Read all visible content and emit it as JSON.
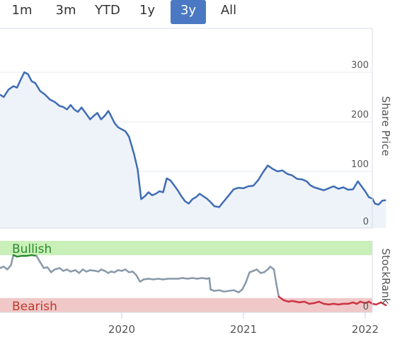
{
  "range_selector": {
    "buttons": [
      "1m",
      "3m",
      "YTD",
      "1y",
      "3y",
      "All"
    ],
    "selected": "3y",
    "active_color": "#4a78c2"
  },
  "chart_data": [
    {
      "type": "area",
      "name": "share-price",
      "ylabel": "Share Price",
      "y_ticks": [
        0,
        100,
        200,
        300
      ],
      "ylim": [
        0,
        400
      ],
      "x_ticks": [
        "2020",
        "2021",
        "2022"
      ],
      "line_color": "#3e6db5",
      "fill_color": "#eef2f9",
      "series": [
        {
          "values": [
            [
              2019.0,
              255
            ],
            [
              2019.03,
              250
            ],
            [
              2019.07,
              265
            ],
            [
              2019.11,
              272
            ],
            [
              2019.14,
              269
            ],
            [
              2019.17,
              285
            ],
            [
              2019.2,
              300
            ],
            [
              2019.23,
              296
            ],
            [
              2019.26,
              282
            ],
            [
              2019.29,
              278
            ],
            [
              2019.33,
              262
            ],
            [
              2019.37,
              255
            ],
            [
              2019.41,
              245
            ],
            [
              2019.45,
              240
            ],
            [
              2019.49,
              232
            ],
            [
              2019.52,
              230
            ],
            [
              2019.55,
              225
            ],
            [
              2019.58,
              234
            ],
            [
              2019.61,
              225
            ],
            [
              2019.64,
              220
            ],
            [
              2019.67,
              229
            ],
            [
              2019.7,
              219
            ],
            [
              2019.74,
              205
            ],
            [
              2019.77,
              212
            ],
            [
              2019.8,
              218
            ],
            [
              2019.83,
              205
            ],
            [
              2019.86,
              212
            ],
            [
              2019.89,
              222
            ],
            [
              2019.91,
              213
            ],
            [
              2019.94,
              198
            ],
            [
              2019.97,
              189
            ],
            [
              2020.0,
              185
            ],
            [
              2020.03,
              181
            ],
            [
              2020.06,
              170
            ],
            [
              2020.1,
              136
            ],
            [
              2020.13,
              105
            ],
            [
              2020.16,
              44
            ],
            [
              2020.19,
              50
            ],
            [
              2020.22,
              58
            ],
            [
              2020.25,
              52
            ],
            [
              2020.28,
              55
            ],
            [
              2020.31,
              60
            ],
            [
              2020.34,
              58
            ],
            [
              2020.37,
              86
            ],
            [
              2020.4,
              82
            ],
            [
              2020.43,
              72
            ],
            [
              2020.46,
              62
            ],
            [
              2020.49,
              50
            ],
            [
              2020.52,
              40
            ],
            [
              2020.55,
              35
            ],
            [
              2020.58,
              44
            ],
            [
              2020.61,
              48
            ],
            [
              2020.64,
              55
            ],
            [
              2020.67,
              50
            ],
            [
              2020.7,
              45
            ],
            [
              2020.73,
              38
            ],
            [
              2020.76,
              30
            ],
            [
              2020.8,
              28
            ],
            [
              2020.84,
              40
            ],
            [
              2020.88,
              52
            ],
            [
              2020.92,
              64
            ],
            [
              2020.96,
              67
            ],
            [
              2021.0,
              66
            ],
            [
              2021.04,
              70
            ],
            [
              2021.08,
              71
            ],
            [
              2021.12,
              82
            ],
            [
              2021.16,
              98
            ],
            [
              2021.2,
              112
            ],
            [
              2021.24,
              105
            ],
            [
              2021.28,
              100
            ],
            [
              2021.32,
              102
            ],
            [
              2021.36,
              95
            ],
            [
              2021.4,
              92
            ],
            [
              2021.44,
              85
            ],
            [
              2021.48,
              84
            ],
            [
              2021.52,
              80
            ],
            [
              2021.55,
              72
            ],
            [
              2021.58,
              68
            ],
            [
              2021.62,
              65
            ],
            [
              2021.66,
              62
            ],
            [
              2021.7,
              66
            ],
            [
              2021.74,
              70
            ],
            [
              2021.78,
              65
            ],
            [
              2021.82,
              68
            ],
            [
              2021.86,
              63
            ],
            [
              2021.9,
              64
            ],
            [
              2021.94,
              80
            ],
            [
              2021.97,
              70
            ],
            [
              2022.0,
              60
            ],
            [
              2022.03,
              48
            ],
            [
              2022.06,
              45
            ],
            [
              2022.08,
              35
            ],
            [
              2022.11,
              33
            ],
            [
              2022.14,
              41
            ],
            [
              2022.17,
              42
            ]
          ]
        }
      ]
    },
    {
      "type": "line",
      "name": "stockrank",
      "ylabel": "StockRank",
      "y_ticks": [
        0
      ],
      "ylim": [
        0,
        100
      ],
      "bands": [
        {
          "label": "Bullish",
          "from": 80,
          "to": 100,
          "color": "#c9f0b8",
          "text_color": "#2b8a2f"
        },
        {
          "label": "Bearish",
          "from": 0,
          "to": 20,
          "color": "#f0c8c8",
          "text_color": "#c0392b"
        }
      ],
      "neutral_color": "#8899aa",
      "bullish_line_color": "#2b8a2f",
      "bearish_line_color": "#cc3344",
      "series": [
        {
          "values": [
            [
              2019.0,
              62
            ],
            [
              2019.03,
              64
            ],
            [
              2019.06,
              60
            ],
            [
              2019.09,
              66
            ],
            [
              2019.11,
              80
            ],
            [
              2019.14,
              78
            ],
            [
              2019.18,
              79
            ],
            [
              2019.22,
              79
            ],
            [
              2019.26,
              80
            ],
            [
              2019.3,
              79
            ],
            [
              2019.33,
              70
            ],
            [
              2019.36,
              62
            ],
            [
              2019.39,
              63
            ],
            [
              2019.42,
              56
            ],
            [
              2019.45,
              60
            ],
            [
              2019.49,
              62
            ],
            [
              2019.52,
              58
            ],
            [
              2019.55,
              60
            ],
            [
              2019.58,
              57
            ],
            [
              2019.62,
              59
            ],
            [
              2019.65,
              55
            ],
            [
              2019.68,
              60
            ],
            [
              2019.71,
              57
            ],
            [
              2019.74,
              59
            ],
            [
              2019.78,
              58
            ],
            [
              2019.81,
              57
            ],
            [
              2019.83,
              60
            ],
            [
              2019.86,
              58
            ],
            [
              2019.89,
              55
            ],
            [
              2019.91,
              57
            ],
            [
              2019.94,
              56
            ],
            [
              2019.97,
              59
            ],
            [
              2020.0,
              58
            ],
            [
              2020.03,
              60
            ],
            [
              2020.06,
              56
            ],
            [
              2020.09,
              57
            ],
            [
              2020.12,
              52
            ],
            [
              2020.15,
              43
            ],
            [
              2020.18,
              46
            ],
            [
              2020.22,
              47
            ],
            [
              2020.26,
              46
            ],
            [
              2020.3,
              47
            ],
            [
              2020.34,
              46
            ],
            [
              2020.38,
              47
            ],
            [
              2020.42,
              47
            ],
            [
              2020.46,
              47
            ],
            [
              2020.5,
              48
            ],
            [
              2020.54,
              47
            ],
            [
              2020.58,
              48
            ],
            [
              2020.62,
              47
            ],
            [
              2020.66,
              48
            ],
            [
              2020.7,
              47
            ],
            [
              2020.72,
              48
            ],
            [
              2020.73,
              32
            ],
            [
              2020.76,
              30
            ],
            [
              2020.8,
              31
            ],
            [
              2020.84,
              29
            ],
            [
              2020.88,
              30
            ],
            [
              2020.92,
              31
            ],
            [
              2020.96,
              28
            ],
            [
              2020.99,
              32
            ],
            [
              2021.02,
              42
            ],
            [
              2021.05,
              56
            ],
            [
              2021.08,
              58
            ],
            [
              2021.11,
              60
            ],
            [
              2021.14,
              55
            ],
            [
              2021.17,
              56
            ],
            [
              2021.2,
              60
            ],
            [
              2021.22,
              64
            ],
            [
              2021.25,
              60
            ],
            [
              2021.27,
              40
            ],
            [
              2021.29,
              22
            ],
            [
              2021.33,
              17
            ],
            [
              2021.37,
              15
            ],
            [
              2021.4,
              16
            ],
            [
              2021.43,
              15
            ],
            [
              2021.46,
              14
            ],
            [
              2021.5,
              15
            ],
            [
              2021.54,
              12
            ],
            [
              2021.58,
              13
            ],
            [
              2021.62,
              15
            ],
            [
              2021.66,
              12
            ],
            [
              2021.7,
              11
            ],
            [
              2021.74,
              12
            ],
            [
              2021.78,
              11
            ],
            [
              2021.82,
              12
            ],
            [
              2021.86,
              12
            ],
            [
              2021.9,
              14
            ],
            [
              2021.93,
              12
            ],
            [
              2021.96,
              15
            ],
            [
              2022.0,
              13
            ],
            [
              2022.03,
              15
            ],
            [
              2022.06,
              12
            ],
            [
              2022.09,
              11
            ],
            [
              2022.13,
              14
            ],
            [
              2022.17,
              10
            ]
          ]
        }
      ]
    }
  ]
}
